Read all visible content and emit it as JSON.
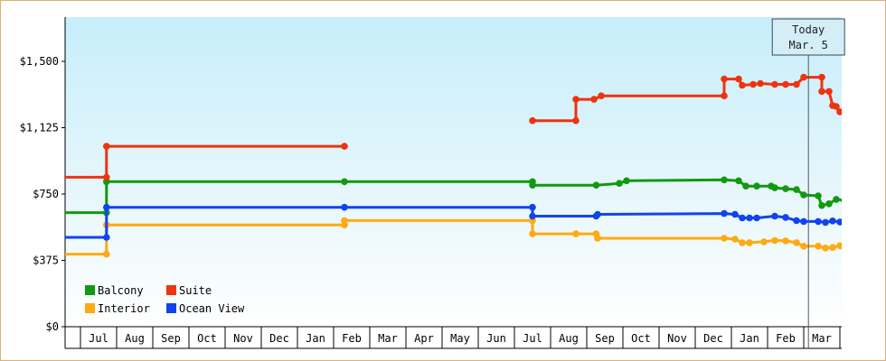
{
  "chart_data": {
    "type": "line",
    "title": "",
    "xlabel": "",
    "ylabel": "",
    "ylim": [
      0,
      1750
    ],
    "y_ticks": [
      {
        "value": 0,
        "label": "$0"
      },
      {
        "value": 375,
        "label": "$375"
      },
      {
        "value": 750,
        "label": "$750"
      },
      {
        "value": 1125,
        "label": "$1,125"
      },
      {
        "value": 1500,
        "label": "$1,500"
      }
    ],
    "months": [
      "Jul",
      "Aug",
      "Sep",
      "Oct",
      "Nov",
      "Dec",
      "Jan",
      "Feb",
      "Mar",
      "Apr",
      "May",
      "Jun",
      "Jul",
      "Aug",
      "Sep",
      "Oct",
      "Nov",
      "Dec",
      "Jan",
      "Feb",
      "Mar"
    ],
    "today_marker": {
      "line1": "Today",
      "line2": "Mar. 5",
      "month_pos": 20.13
    },
    "legend": {
      "placement": "bottom-left"
    },
    "series": [
      {
        "name": "Balcony",
        "color": "#119911",
        "points": [
          [
            -0.92,
            645
          ],
          [
            0.72,
            645
          ],
          [
            0.72,
            820
          ],
          [
            7.3,
            820
          ],
          [
            12.5,
            820
          ],
          [
            12.5,
            800
          ],
          [
            14.26,
            800
          ],
          [
            14.9,
            810
          ],
          [
            15.1,
            825
          ],
          [
            17.8,
            830
          ],
          [
            18.2,
            825
          ],
          [
            18.4,
            795
          ],
          [
            18.7,
            795
          ],
          [
            19.1,
            795
          ],
          [
            19.2,
            785
          ],
          [
            19.5,
            780
          ],
          [
            19.8,
            775
          ],
          [
            20.0,
            745
          ],
          [
            20.4,
            740
          ],
          [
            20.5,
            685
          ],
          [
            20.7,
            695
          ],
          [
            20.9,
            720
          ],
          [
            21.12,
            715
          ]
        ],
        "projection": [
          [
            21.12,
            715
          ],
          [
            22.2,
            715
          ]
        ]
      },
      {
        "name": "Suite",
        "color": "#ee3311",
        "points": [
          [
            -0.92,
            845
          ],
          [
            0.72,
            845
          ],
          [
            0.72,
            1020
          ],
          [
            7.3,
            1020
          ]
        ],
        "points_b": [
          [
            12.5,
            1165
          ],
          [
            13.7,
            1165
          ],
          [
            13.7,
            1285
          ],
          [
            14.2,
            1285
          ],
          [
            14.4,
            1305
          ],
          [
            17.8,
            1305
          ],
          [
            17.8,
            1400
          ],
          [
            18.2,
            1400
          ],
          [
            18.3,
            1365
          ],
          [
            18.6,
            1370
          ],
          [
            18.8,
            1375
          ],
          [
            19.2,
            1370
          ],
          [
            19.5,
            1370
          ],
          [
            19.8,
            1370
          ],
          [
            20.0,
            1410
          ],
          [
            20.5,
            1410
          ],
          [
            20.5,
            1330
          ],
          [
            20.7,
            1330
          ],
          [
            20.8,
            1250
          ],
          [
            20.9,
            1245
          ],
          [
            21.0,
            1215
          ],
          [
            21.12,
            1215
          ]
        ],
        "projection": [
          [
            21.12,
            1215
          ],
          [
            22.2,
            1245
          ]
        ]
      },
      {
        "name": "Interior",
        "color": "#ffaa11",
        "points": [
          [
            -0.92,
            410
          ],
          [
            0.72,
            410
          ],
          [
            0.72,
            575
          ],
          [
            7.3,
            575
          ],
          [
            7.3,
            600
          ],
          [
            12.5,
            600
          ],
          [
            12.5,
            525
          ],
          [
            13.7,
            525
          ],
          [
            14.26,
            525
          ],
          [
            14.3,
            500
          ],
          [
            17.8,
            500
          ],
          [
            18.1,
            495
          ],
          [
            18.3,
            475
          ],
          [
            18.5,
            475
          ],
          [
            18.9,
            480
          ],
          [
            19.2,
            488
          ],
          [
            19.5,
            485
          ],
          [
            19.8,
            475
          ],
          [
            20.0,
            455
          ],
          [
            20.4,
            455
          ],
          [
            20.6,
            445
          ],
          [
            20.8,
            448
          ],
          [
            21.0,
            458
          ],
          [
            21.12,
            445
          ]
        ],
        "projection": [
          [
            21.12,
            445
          ],
          [
            22.2,
            445
          ]
        ]
      },
      {
        "name": "Ocean View",
        "color": "#1144ee",
        "points": [
          [
            -0.92,
            505
          ],
          [
            0.72,
            505
          ],
          [
            0.72,
            675
          ],
          [
            7.3,
            675
          ],
          [
            12.5,
            675
          ],
          [
            12.5,
            625
          ],
          [
            14.26,
            625
          ],
          [
            14.3,
            635
          ],
          [
            17.8,
            640
          ],
          [
            18.1,
            635
          ],
          [
            18.3,
            615
          ],
          [
            18.5,
            615
          ],
          [
            18.7,
            615
          ],
          [
            19.2,
            625
          ],
          [
            19.5,
            618
          ],
          [
            19.8,
            600
          ],
          [
            20.0,
            595
          ],
          [
            20.4,
            595
          ],
          [
            20.6,
            590
          ],
          [
            20.8,
            598
          ],
          [
            21.0,
            592
          ],
          [
            21.12,
            595
          ]
        ],
        "projection": [
          [
            21.12,
            595
          ],
          [
            22.2,
            595
          ]
        ]
      }
    ]
  }
}
